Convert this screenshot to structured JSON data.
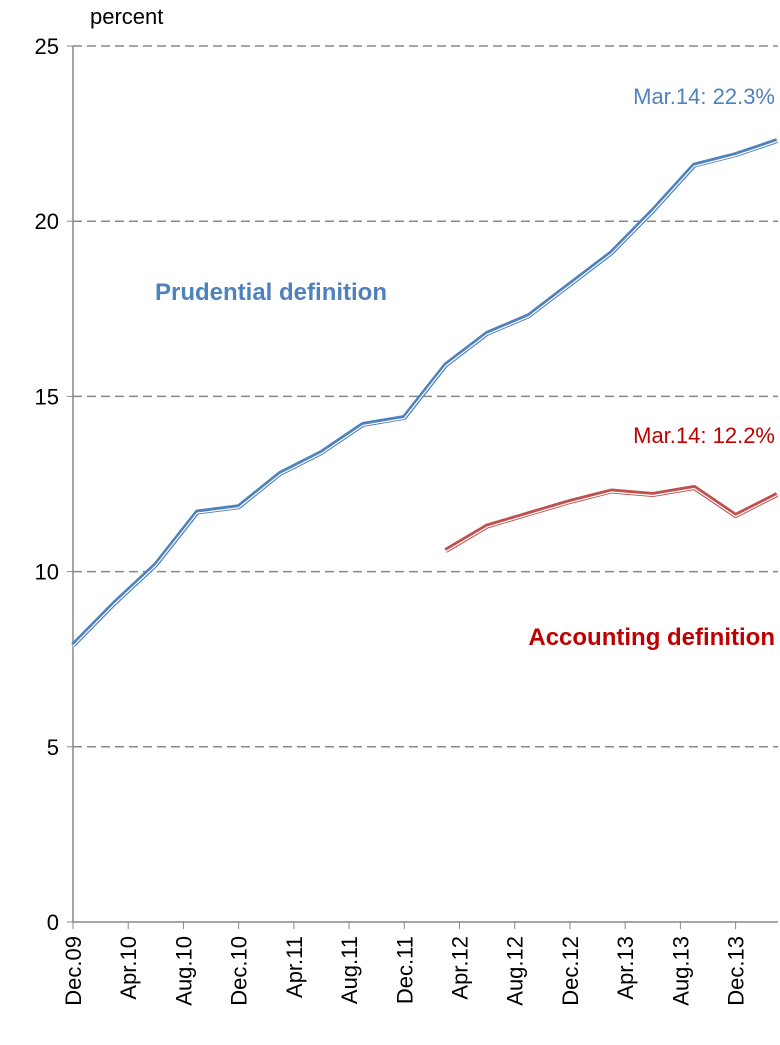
{
  "chart_data": {
    "type": "line",
    "y_label": "percent",
    "x": [
      0,
      3,
      6,
      9,
      12,
      15,
      18,
      21,
      24,
      27,
      30,
      33,
      36,
      39,
      42,
      45,
      48,
      51
    ],
    "xlim": [
      0,
      51
    ],
    "xticks": [
      {
        "value": 0,
        "label": "Dec.09"
      },
      {
        "value": 4,
        "label": "Apr.10"
      },
      {
        "value": 8,
        "label": "Aug.10"
      },
      {
        "value": 12,
        "label": "Dec.10"
      },
      {
        "value": 16,
        "label": "Apr.11"
      },
      {
        "value": 20,
        "label": "Aug.11"
      },
      {
        "value": 24,
        "label": "Dec.11"
      },
      {
        "value": 28,
        "label": "Apr.12"
      },
      {
        "value": 32,
        "label": "Aug.12"
      },
      {
        "value": 36,
        "label": "Dec.12"
      },
      {
        "value": 40,
        "label": "Apr.13"
      },
      {
        "value": 44,
        "label": "Aug.13"
      },
      {
        "value": 48,
        "label": "Dec.13"
      }
    ],
    "ylim": [
      0,
      25
    ],
    "yticks": [
      0,
      5,
      10,
      15,
      20,
      25
    ],
    "grid": true,
    "series": [
      {
        "name": "Prudential definition",
        "color": "#4f81bd",
        "values": [
          7.9,
          9.1,
          10.2,
          11.7,
          11.85,
          12.8,
          13.4,
          14.2,
          14.4,
          15.9,
          16.8,
          17.3,
          18.2,
          19.1,
          20.3,
          21.6,
          21.9,
          22.3
        ]
      },
      {
        "name": "Accounting definition",
        "color": "#c0504d",
        "values": [
          null,
          null,
          null,
          null,
          null,
          null,
          null,
          null,
          null,
          10.6,
          11.3,
          11.65,
          12.0,
          12.3,
          12.2,
          12.4,
          11.6,
          12.2
        ]
      }
    ],
    "annotations": [
      "Mar.14: 22.3%",
      "Mar.14: 12.2%"
    ]
  }
}
